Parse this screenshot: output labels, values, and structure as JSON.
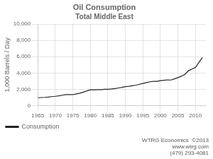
{
  "chart_data": {
    "type": "line",
    "title": "Oil Consumption",
    "subtitle": "Total Middle East",
    "ylabel": "1,000 Barrels / Day",
    "x": [
      1965,
      1966,
      1967,
      1968,
      1969,
      1970,
      1971,
      1972,
      1973,
      1974,
      1975,
      1976,
      1977,
      1978,
      1979,
      1980,
      1981,
      1982,
      1983,
      1984,
      1985,
      1986,
      1987,
      1988,
      1989,
      1990,
      1991,
      1992,
      1993,
      1994,
      1995,
      1996,
      1997,
      1998,
      1999,
      2000,
      2001,
      2002,
      2003,
      2004,
      2005,
      2006,
      2007,
      2008,
      2009,
      2010,
      2011,
      2012
    ],
    "series": [
      {
        "name": "Consumption",
        "color": "#222222",
        "values": [
          970,
          990,
          1010,
          1050,
          1100,
          1140,
          1190,
          1270,
          1350,
          1340,
          1340,
          1430,
          1520,
          1650,
          1810,
          1930,
          1940,
          1960,
          1960,
          2000,
          2000,
          2040,
          2090,
          2160,
          2230,
          2320,
          2370,
          2440,
          2510,
          2620,
          2720,
          2820,
          2920,
          2970,
          2980,
          3060,
          3110,
          3160,
          3140,
          3280,
          3430,
          3600,
          3830,
          4280,
          4480,
          4680,
          5300,
          5900
        ]
      }
    ],
    "xlim": [
      1965,
      2013
    ],
    "xticks": [
      1965,
      1970,
      1975,
      1980,
      1985,
      1990,
      1995,
      2000,
      2005,
      2010
    ],
    "ylim": [
      0,
      10000
    ],
    "yticks": [
      0,
      {
        "value": 2000,
        "label": "2,000"
      },
      {
        "value": 4000,
        "label": "4,000"
      },
      {
        "value": 6000,
        "label": "6,000"
      },
      {
        "value": 8000,
        "label": "8,000"
      },
      {
        "value": 10000,
        "label": "10,000"
      }
    ],
    "grid": true,
    "legend": "bottom",
    "annotations": [
      "WTRG Economics  ©2013",
      "www.wtrg.com",
      "(479) 293-4081"
    ]
  }
}
